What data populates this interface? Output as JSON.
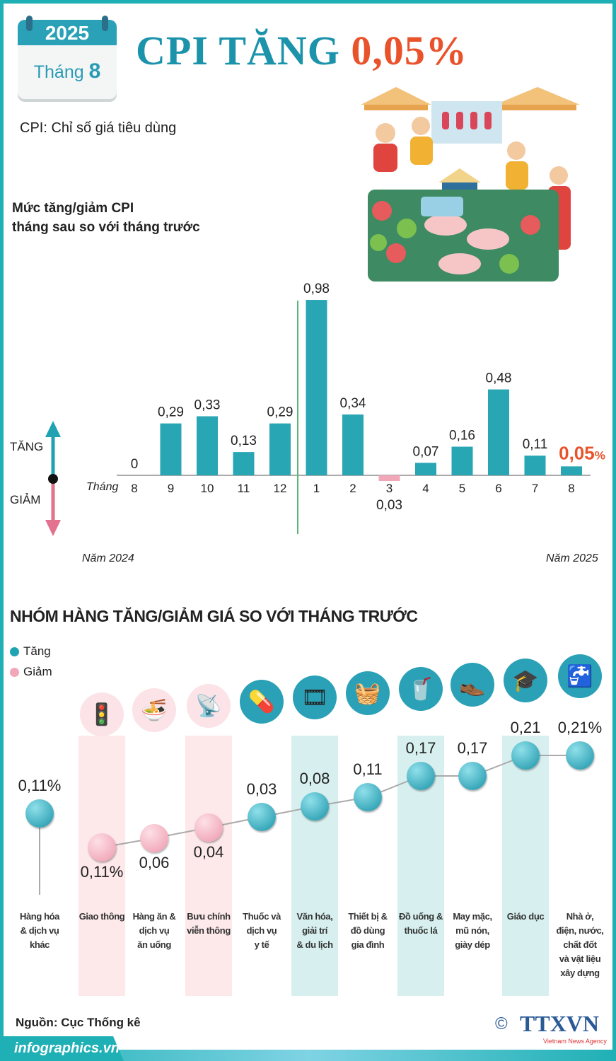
{
  "header": {
    "year": "2025",
    "month_label": "Tháng",
    "month": "8",
    "title_main": "CPI TĂNG",
    "title_value": "0,05%",
    "subtitle": "CPI: Chỉ số giá tiêu dùng"
  },
  "colors": {
    "teal": "#1fa3b3",
    "pink": "#f2a7b8",
    "accent": "#e9532b",
    "band_pink": "#fde8ea",
    "band_teal": "#d7f0ef"
  },
  "chart_data": [
    {
      "type": "bar",
      "title": "Mức tăng/giảm CPI tháng sau so với tháng trước",
      "title_lines": [
        "Mức tăng/giảm CPI",
        "tháng sau so với tháng trước"
      ],
      "xlabel": "Tháng",
      "categories": [
        "8",
        "9",
        "10",
        "11",
        "12",
        "1",
        "2",
        "3",
        "4",
        "5",
        "6",
        "7",
        "8"
      ],
      "values": [
        0,
        0.29,
        0.33,
        0.13,
        0.29,
        0.98,
        0.34,
        -0.03,
        0.07,
        0.16,
        0.48,
        0.11,
        0.05
      ],
      "value_labels": [
        "0",
        "0,29",
        "0,33",
        "0,13",
        "0,29",
        "0,98",
        "0,34",
        "0,03",
        "0,07",
        "0,16",
        "0,48",
        "0,11",
        "0,05"
      ],
      "highlight_suffix": "%",
      "up_label": "TĂNG",
      "down_label": "GIẢM",
      "year_left": "Năm 2024",
      "year_right": "Năm 2025"
    },
    {
      "type": "scatter",
      "title": "NHÓM HÀNG TĂNG/GIẢM GIÁ SO VỚI THÁNG TRƯỚC",
      "legend": [
        {
          "name": "Tăng",
          "color": "#1fa3b3"
        },
        {
          "name": "Giảm",
          "color": "#f2a7b8"
        }
      ],
      "categories": [
        {
          "name": "Hàng hóa & dịch vụ khác",
          "value": 0.11,
          "label": "0,11%",
          "icon": "none"
        },
        {
          "name": "Giao thông",
          "value": -0.11,
          "label": "0,11%",
          "icon": "traffic-light-icon"
        },
        {
          "name": "Hàng ăn & dịch vụ ăn uống",
          "value": -0.06,
          "label": "0,06",
          "icon": "food-bowl-icon"
        },
        {
          "name": "Bưu chính viễn thông",
          "value": -0.04,
          "label": "0,04",
          "icon": "antenna-tower-icon"
        },
        {
          "name": "Thuốc và dịch vụ y tế",
          "value": 0.03,
          "label": "0,03",
          "icon": "pill-icon"
        },
        {
          "name": "Văn hóa, giải trí & du lịch",
          "value": 0.08,
          "label": "0,08",
          "icon": "film-reel-icon"
        },
        {
          "name": "Thiết bị & đồ dùng gia đình",
          "value": 0.11,
          "label": "0,11",
          "icon": "washing-machine-icon"
        },
        {
          "name": "Đồ uống & thuốc lá",
          "value": 0.17,
          "label": "0,17",
          "icon": "drink-cigarette-icon"
        },
        {
          "name": "May mặc, mũ nón, giày dép",
          "value": 0.17,
          "label": "0,17",
          "icon": "shirt-shoe-icon"
        },
        {
          "name": "Giáo dục",
          "value": 0.21,
          "label": "0,21",
          "icon": "graduation-cap-icon"
        },
        {
          "name": "Nhà ở, điện, nước, chất đốt và vật liệu xây dựng",
          "value": 0.21,
          "label": "0,21%",
          "icon": "house-water-icon"
        }
      ]
    }
  ],
  "category_lines": [
    [
      "Hàng hóa",
      "& dịch vụ",
      "khác"
    ],
    [
      "Giao thông"
    ],
    [
      "Hàng ăn &",
      "dịch vụ",
      "ăn uống"
    ],
    [
      "Bưu chính",
      "viễn thông"
    ],
    [
      "Thuốc và",
      "dịch vụ",
      "y tế"
    ],
    [
      "Văn hóa,",
      "giải trí",
      "& du lịch"
    ],
    [
      "Thiết bị &",
      "đồ dùng",
      "gia đình"
    ],
    [
      "Đồ uống &",
      "thuốc lá"
    ],
    [
      "May mặc,",
      "mũ nón,",
      "giày dép"
    ],
    [
      "Giáo dục"
    ],
    [
      "Nhà ở,",
      "điện, nước,",
      "chất đốt",
      "và vật liệu",
      "xây dựng"
    ]
  ],
  "footer": {
    "source": "Nguồn: Cục Thống kê",
    "site": "infographics.vn",
    "logo": "TTXVN",
    "logo_sub": "Vietnam News Agency",
    "copyright": "©"
  }
}
